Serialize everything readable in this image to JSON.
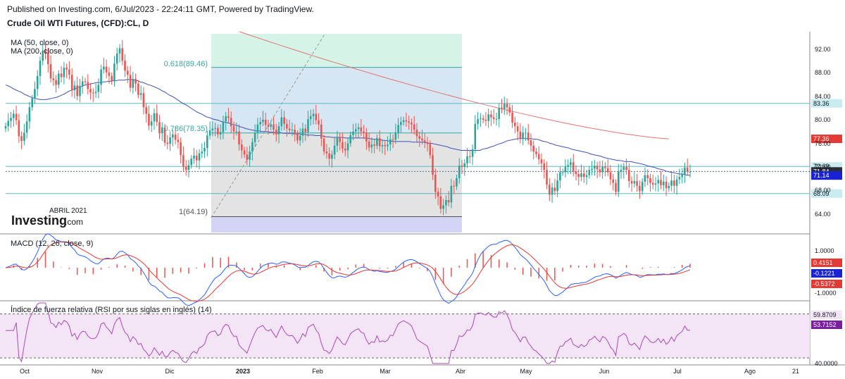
{
  "header": {
    "published": "Published on Investing.com, 6/Jul/2023 - 22:24:11 GMT, Powered by TradingView.",
    "symbol": "Crude Oil WTI Futures, (CFD):CL, D"
  },
  "legend": {
    "ma50": "MA (50, close, 0)",
    "ma200": "MA (200, close, 0)"
  },
  "watermark": {
    "brand": "Investing",
    "brand_suffix": ".com",
    "note": "ABRIL 2021"
  },
  "fib": {
    "levels": [
      {
        "label": "0.618(89.46)",
        "value": 89.46
      },
      {
        "label": "0.786(78.35)",
        "value": 78.35
      },
      {
        "label": "1(64.19)",
        "value": 64.19
      }
    ],
    "colors": {
      "top_zone": "#d5f3e6",
      "mid_zone": "#d6e6f2",
      "low_zone": "#e3e3e3",
      "base_zone": "#d3d3f3",
      "line": "#38a8a0"
    }
  },
  "horizontal_lines": [
    {
      "value": 83.36,
      "color": "#5db8c4"
    },
    {
      "value": 72.69,
      "color": "#5db8c4"
    },
    {
      "value": 68.09,
      "color": "#5db8c4"
    }
  ],
  "macd": {
    "title": "MACD (12, 26, close, 9)",
    "values": {
      "hist": "0.4151",
      "macd": "-0.1221",
      "signal": "-0.5372"
    },
    "colors": {
      "hist": "#ef5350",
      "macd": "#2962ff",
      "signal": "#e53935"
    }
  },
  "rsi": {
    "title": "Índice de fuerza relativa (RSI por sus siglas en inglés) (14)",
    "values": {
      "upper": "59.8709",
      "current": "53.7152"
    },
    "ticks": [
      "40.0000"
    ],
    "color": "#ab47bc"
  },
  "colors": {
    "up": "#26a69a",
    "down": "#ef5350",
    "ma50": "#3f51b5",
    "ma200": "#e57373",
    "price_badge_red": "#e53935",
    "price_badge_blue": "#1a23d4"
  },
  "chart_data": {
    "type": "candlestick",
    "title": "Crude Oil WTI Futures, (CFD):CL, D",
    "x_tick_labels": [
      "Oct",
      "Nov",
      "Dic",
      "2023",
      "Feb",
      "Mar",
      "Abr",
      "May",
      "Jun",
      "Jul",
      "Ago",
      "21"
    ],
    "y_tick_labels": [
      "92.00",
      "88.00",
      "84.00",
      "80.00",
      "76.00",
      "72.00",
      "68.00",
      "64.00"
    ],
    "ylim": [
      61.5,
      95.5
    ],
    "price_badges": [
      {
        "label": "83.36",
        "value": 83.36,
        "style": "cyan"
      },
      {
        "label": "77.36",
        "value": 77.36,
        "style": "red"
      },
      {
        "label": "72.69",
        "value": 72.69,
        "style": "cyan"
      },
      {
        "label": "71.84",
        "value": 71.84,
        "style": "dark"
      },
      {
        "label": "71.14",
        "value": 71.14,
        "style": "blue"
      },
      {
        "label": "68.09",
        "value": 68.09,
        "style": "cyan"
      }
    ],
    "price_series_close": [
      79.5,
      80.4,
      80.9,
      81.6,
      80.5,
      77.8,
      77.0,
      78.4,
      80.3,
      82.7,
      84.2,
      85.8,
      88.0,
      90.6,
      92.3,
      91.9,
      90.0,
      87.6,
      87.3,
      86.5,
      88.4,
      87.8,
      89.4,
      89.1,
      88.2,
      85.6,
      86.4,
      84.6,
      86.3,
      87.1,
      87.0,
      85.8,
      85.2,
      85.1,
      85.3,
      86.5,
      89.1,
      89.6,
      88.6,
      88.0,
      87.1,
      90.1,
      91.8,
      92.7,
      90.6,
      88.9,
      88.2,
      86.0,
      87.5,
      86.7,
      84.8,
      85.1,
      82.7,
      81.6,
      79.6,
      80.3,
      81.7,
      80.2,
      78.3,
      79.3,
      76.7,
      76.5,
      77.6,
      78.1,
      77.2,
      76.8,
      74.6,
      72.6,
      72.1,
      72.9,
      74.0,
      74.5,
      73.7,
      74.9,
      75.2,
      75.8,
      77.9,
      78.8,
      79.1,
      79.2,
      78.1,
      78.5,
      80.3,
      81.2,
      80.9,
      79.5,
      78.6,
      78.6,
      76.4,
      75.4,
      74.7,
      73.8,
      75.2,
      76.8,
      78.4,
      79.8,
      80.2,
      80.6,
      79.7,
      79.4,
      79.8,
      78.9,
      78.1,
      79.5,
      81.0,
      79.9,
      79.1,
      78.8,
      78.9,
      78.2,
      77.1,
      77.9,
      79.1,
      78.5,
      80.7,
      81.2,
      81.6,
      80.5,
      79.8,
      77.4,
      75.2,
      74.9,
      74.0,
      74.7,
      76.2,
      77.6,
      76.8,
      75.7,
      75.4,
      76.6,
      78.0,
      78.6,
      79.0,
      79.3,
      78.6,
      78.4,
      76.9,
      75.9,
      76.4,
      76.2,
      77.5,
      76.1,
      76.3,
      76.1,
      76.4,
      77.3,
      77.2,
      78.4,
      79.7,
      80.2,
      80.5,
      80.3,
      80.1,
      79.8,
      78.9,
      77.8,
      77.4,
      77.1,
      76.8,
      76.5,
      74.6,
      71.3,
      68.4,
      67.6,
      65.5,
      66.1,
      67.0,
      66.6,
      69.4,
      69.3,
      70.7,
      72.8,
      72.6,
      73.2,
      74.4,
      74.3,
      75.6,
      79.9,
      80.7,
      80.8,
      80.6,
      80.4,
      81.5,
      81.0,
      80.7,
      80.7,
      82.6,
      82.4,
      83.3,
      82.7,
      81.8,
      80.1,
      79.5,
      78.6,
      77.4,
      78.4,
      78.4,
      77.1,
      76.2,
      75.2,
      74.8,
      73.9,
      73.2,
      72.1,
      69.6,
      67.9,
      69.1,
      68.5,
      70.3,
      71.7,
      71.7,
      72.6,
      72.9,
      73.4,
      71.8,
      71.4,
      70.9,
      71.5,
      70.9,
      71.2,
      72.1,
      72.3,
      72.8,
      72.2,
      71.7,
      72.6,
      72.4,
      71.7,
      70.5,
      69.9,
      68.4,
      71.8,
      72.1,
      72.6,
      72.1,
      70.2,
      69.8,
      70.2,
      69.4,
      68.5,
      70.1,
      71.2,
      70.7,
      69.9,
      69.6,
      69.8,
      70.4,
      69.5,
      70.1,
      69.0,
      69.4,
      70.3,
      69.4,
      70.5,
      70.9,
      71.3,
      72.5,
      71.8,
      71.8
    ],
    "ma50_series": [
      86.5,
      86.3,
      86.1,
      85.8,
      85.6,
      85.4,
      85.2,
      84.9,
      84.7,
      84.5,
      84.3,
      84.2,
      84.1,
      84.0,
      84.0,
      84.0,
      84.1,
      84.2,
      84.3,
      84.4,
      84.6,
      84.8,
      85.0,
      85.3,
      85.5,
      85.7,
      85.9,
      86.1,
      86.2,
      86.4,
      86.5,
      86.6,
      86.7,
      86.8,
      86.9,
      86.9,
      87.0,
      87.0,
      87.1,
      87.1,
      87.2,
      87.2,
      87.3,
      87.3,
      87.3,
      87.4,
      87.4,
      87.4,
      87.3,
      87.2,
      87.0,
      86.9,
      86.7,
      86.5,
      86.4,
      86.2,
      86.0,
      85.8,
      85.5,
      85.3,
      85.0,
      84.7,
      84.5,
      84.2,
      83.9,
      83.6,
      83.3,
      83.1,
      82.8,
      82.5,
      82.2,
      81.9,
      81.7,
      81.5,
      81.2,
      81.0,
      80.9,
      80.7,
      80.6,
      80.5,
      80.3,
      80.2,
      80.1,
      80.0,
      79.8,
      79.7,
      79.6,
      79.4,
      79.3,
      79.1,
      79.0,
      78.9,
      78.8,
      78.7,
      78.7,
      78.6,
      78.6,
      78.6,
      78.5,
      78.5,
      78.4,
      78.4,
      78.4,
      78.3,
      78.3,
      78.3,
      78.3,
      78.2,
      78.2,
      78.2,
      78.1,
      78.1,
      78.0,
      78.0,
      78.0,
      77.9,
      77.9,
      77.9,
      77.8,
      77.7,
      77.7,
      77.6,
      77.6,
      77.6,
      77.6,
      77.6,
      77.5,
      77.5,
      77.5,
      77.5,
      77.5,
      77.5,
      77.5,
      77.5,
      77.5,
      77.4,
      77.3,
      77.3,
      77.2,
      77.2,
      77.1,
      77.1,
      77.0,
      77.0,
      76.9,
      76.9,
      76.9,
      76.9,
      76.9,
      76.9,
      76.9,
      76.8,
      76.8,
      76.8,
      76.8,
      76.8,
      76.7,
      76.6,
      76.6,
      76.5,
      76.4,
      76.3,
      76.2,
      76.1,
      76.0,
      75.8,
      75.7,
      75.6,
      75.5,
      75.4,
      75.4,
      75.4,
      75.4,
      75.4,
      75.4,
      75.4,
      75.4,
      75.6,
      75.7,
      75.8,
      76.0,
      76.1,
      76.3,
      76.5,
      76.6,
      76.8,
      77.0,
      77.1,
      77.2,
      77.3,
      77.4,
      77.4,
      77.4,
      77.4,
      77.4,
      77.4,
      77.3,
      77.3,
      77.2,
      77.0,
      76.9,
      76.8,
      76.6,
      76.5,
      76.3,
      76.2,
      76.1,
      76.0,
      75.9,
      75.8,
      75.6,
      75.5,
      75.4,
      75.3,
      75.2,
      75.1,
      75.0,
      74.8,
      74.7,
      74.6,
      74.5,
      74.4,
      74.2,
      74.1,
      74.0,
      73.9,
      73.8,
      73.7,
      73.7,
      73.6,
      73.5,
      73.5,
      73.5,
      73.4,
      73.3,
      73.2,
      73.1,
      73.0,
      72.8,
      72.7,
      72.6,
      72.5,
      72.3,
      72.2,
      72.1,
      71.9,
      71.8,
      71.7,
      71.6,
      71.5,
      71.4,
      71.4,
      71.3,
      71.2,
      71.2
    ],
    "ma200_series_range": [
      95.5,
      77.36
    ],
    "macd_ylim": [
      -1.5,
      1.5
    ],
    "macd_ticks": [
      "1.0000",
      "-1.0000"
    ],
    "rsi_ylim": [
      25,
      80
    ],
    "rsi_ticks": [
      "40.0000"
    ]
  }
}
